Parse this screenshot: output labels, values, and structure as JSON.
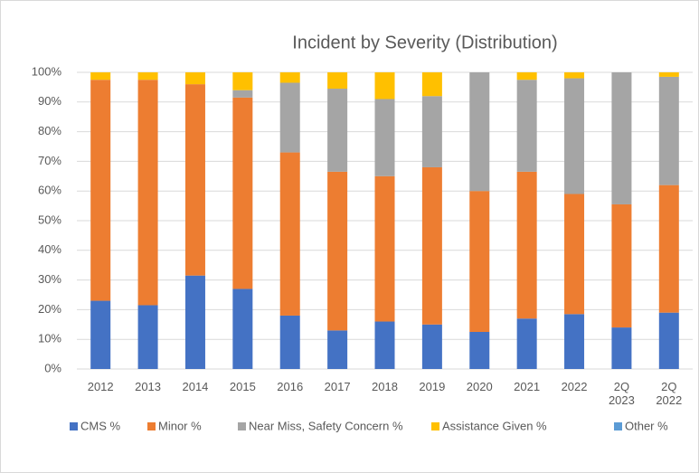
{
  "chart_data": {
    "type": "stacked_bar",
    "title": "Incident by Severity (Distribution)",
    "categories": [
      "2012",
      "2013",
      "2014",
      "2015",
      "2016",
      "2017",
      "2018",
      "2019",
      "2020",
      "2021",
      "2022",
      "2Q 2023",
      "2Q 2022"
    ],
    "series": [
      {
        "name": "CMS %",
        "color": "#4472c4",
        "values": [
          23,
          21.5,
          31.5,
          27,
          18,
          13,
          16,
          15,
          12.5,
          17,
          18.5,
          14,
          19
        ]
      },
      {
        "name": "Minor %",
        "color": "#ed7d31",
        "values": [
          74.5,
          76,
          64.5,
          64.5,
          55,
          53.5,
          49,
          53,
          47.5,
          49.5,
          40.5,
          41.5,
          43
        ]
      },
      {
        "name": "Near Miss, Safety Concern %",
        "color": "#a5a5a5",
        "values": [
          0,
          0,
          0,
          2.5,
          23.5,
          28,
          26,
          24,
          40,
          31,
          39,
          44.5,
          36.5
        ]
      },
      {
        "name": "Assistance Given %",
        "color": "#ffc000",
        "values": [
          2.5,
          2.5,
          4,
          6,
          3.5,
          5.5,
          9,
          8,
          0,
          2.5,
          2,
          0,
          1.5
        ]
      },
      {
        "name": "Other %",
        "color": "#5b9bd5",
        "values": [
          0,
          0,
          0,
          0,
          0,
          0,
          0,
          0,
          0,
          0,
          0,
          0,
          0
        ]
      }
    ],
    "ylim": [
      0,
      100
    ],
    "yticks": [
      {
        "value": 0,
        "label": "0%"
      },
      {
        "value": 10,
        "label": "10%"
      },
      {
        "value": 20,
        "label": "20%"
      },
      {
        "value": 30,
        "label": "30%"
      },
      {
        "value": 40,
        "label": "40%"
      },
      {
        "value": 50,
        "label": "50%"
      },
      {
        "value": 60,
        "label": "60%"
      },
      {
        "value": 70,
        "label": "70%"
      },
      {
        "value": 80,
        "label": "80%"
      },
      {
        "value": 90,
        "label": "90%"
      },
      {
        "value": 100,
        "label": "100%"
      }
    ],
    "grid": true,
    "legend": "bottom"
  }
}
